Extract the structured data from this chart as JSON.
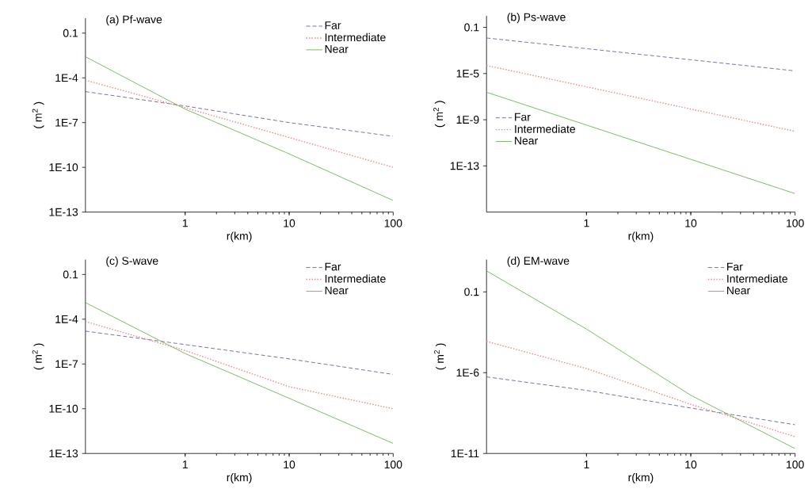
{
  "chart_data": [
    {
      "type": "line",
      "title": "(a) Pf-wave",
      "xlabel": "r(km)",
      "ylabel": "( m$^{2}$ )",
      "log": "xy",
      "legend": "top right",
      "xlim": [
        0.11,
        100
      ],
      "ylim": [
        1e-13,
        1
      ],
      "xticks": [
        1,
        10,
        100
      ],
      "yticks": [
        {
          "value": 0.1,
          "label": "0.1"
        },
        {
          "value": 0.0001,
          "label": "1E-4"
        },
        {
          "value": 1e-07,
          "label": "1E-7"
        },
        {
          "value": 1e-10,
          "label": "1E-10"
        },
        {
          "value": 1e-13,
          "label": "1E-13"
        }
      ],
      "series": [
        {
          "name": "Far",
          "color": "#50509c",
          "line_style": "dashed",
          "x": [
            0.11,
            1,
            10,
            100
          ],
          "values": [
            1.2e-05,
            1.3e-06,
            1e-07,
            1.2e-08
          ]
        },
        {
          "name": "Intermediate",
          "color": "#f08a8a",
          "line_style": "dotted",
          "x": [
            0.11,
            1,
            10,
            100
          ],
          "values": [
            7e-05,
            1e-06,
            1e-08,
            1e-10
          ]
        },
        {
          "name": "Near",
          "color": "#5aaa46",
          "line_style": "solid",
          "x": [
            0.11,
            1,
            10,
            100
          ],
          "values": [
            0.0026,
            8e-07,
            8e-10,
            6e-13
          ]
        }
      ]
    },
    {
      "type": "line",
      "title": "(b) Ps-wave",
      "xlabel": "r(km)",
      "ylabel": "( m$^{2}$ )",
      "log": "xy",
      "legend": "left",
      "xlim": [
        0.11,
        100
      ],
      "ylim": [
        1e-17,
        1
      ],
      "xticks": [
        1,
        10,
        100
      ],
      "yticks": [
        {
          "value": 0.1,
          "label": "0.1"
        },
        {
          "value": 1e-05,
          "label": "1E-5"
        },
        {
          "value": 1e-09,
          "label": "1E-9"
        },
        {
          "value": 1e-13,
          "label": "1E-13"
        }
      ],
      "series": [
        {
          "name": "Far",
          "color": "#50509c",
          "line_style": "dashed",
          "x": [
            0.11,
            100
          ],
          "values": [
            0.012,
            1.7e-05
          ]
        },
        {
          "name": "Intermediate",
          "color": "#f08a8a",
          "line_style": "dotted",
          "x": [
            0.11,
            100
          ],
          "values": [
            5e-05,
            1e-10
          ]
        },
        {
          "name": "Near",
          "color": "#5aaa46",
          "line_style": "solid",
          "x": [
            0.11,
            100
          ],
          "values": [
            2.4e-07,
            4e-16
          ]
        }
      ]
    },
    {
      "type": "line",
      "title": "(c) S-wave",
      "xlabel": "r(km)",
      "ylabel": "( m$^{2}$ )",
      "log": "xy",
      "legend": "top right",
      "xlim": [
        0.11,
        100
      ],
      "ylim": [
        1e-13,
        1
      ],
      "xticks": [
        1,
        10,
        100
      ],
      "yticks": [
        {
          "value": 0.1,
          "label": "0.1"
        },
        {
          "value": 0.0001,
          "label": "1E-4"
        },
        {
          "value": 1e-07,
          "label": "1E-7"
        },
        {
          "value": 1e-10,
          "label": "1E-10"
        },
        {
          "value": 1e-13,
          "label": "1E-13"
        }
      ],
      "series": [
        {
          "name": "Far",
          "color": "#50509c",
          "line_style": "dashed",
          "x": [
            0.11,
            1,
            10,
            100
          ],
          "values": [
            1.6e-05,
            2e-06,
            2.2e-07,
            2e-08
          ]
        },
        {
          "name": "Intermediate",
          "color": "#f08a8a",
          "line_style": "dotted",
          "x": [
            0.11,
            1,
            10,
            100
          ],
          "values": [
            7e-05,
            8e-07,
            3e-09,
            1e-10
          ]
        },
        {
          "name": "Near",
          "color": "#5aaa46",
          "line_style": "solid",
          "x": [
            0.11,
            1,
            10,
            100
          ],
          "values": [
            0.0013,
            5e-07,
            5e-10,
            4.7e-13
          ]
        }
      ]
    },
    {
      "type": "line",
      "title": "(d) EM-wave",
      "xlabel": "r(km)",
      "ylabel": "( m$^{2}$ )",
      "log": "xy",
      "legend": "top right",
      "xlim": [
        0.11,
        100
      ],
      "ylim": [
        1e-11,
        10
      ],
      "xticks": [
        1,
        10,
        100
      ],
      "yticks": [
        {
          "value": 0.1,
          "label": "0.1"
        },
        {
          "value": 1e-06,
          "label": "1E-6"
        },
        {
          "value": 1e-11,
          "label": "1E-11"
        }
      ],
      "series": [
        {
          "name": "Far",
          "color": "#50509c",
          "line_style": "dashed",
          "x": [
            0.11,
            1,
            10,
            100
          ],
          "values": [
            5.5e-07,
            8e-08,
            6.5e-09,
            6e-10
          ]
        },
        {
          "name": "Intermediate",
          "color": "#f08a8a",
          "line_style": "dotted",
          "x": [
            0.11,
            1,
            10,
            100
          ],
          "values": [
            8.7e-05,
            1.8e-06,
            1.1e-08,
            1.1e-10
          ]
        },
        {
          "name": "Near",
          "color": "#5aaa46",
          "line_style": "solid",
          "x": [
            0.11,
            1,
            10,
            100
          ],
          "values": [
            2,
            0.0005,
            4e-08,
            2e-11
          ]
        }
      ]
    }
  ]
}
